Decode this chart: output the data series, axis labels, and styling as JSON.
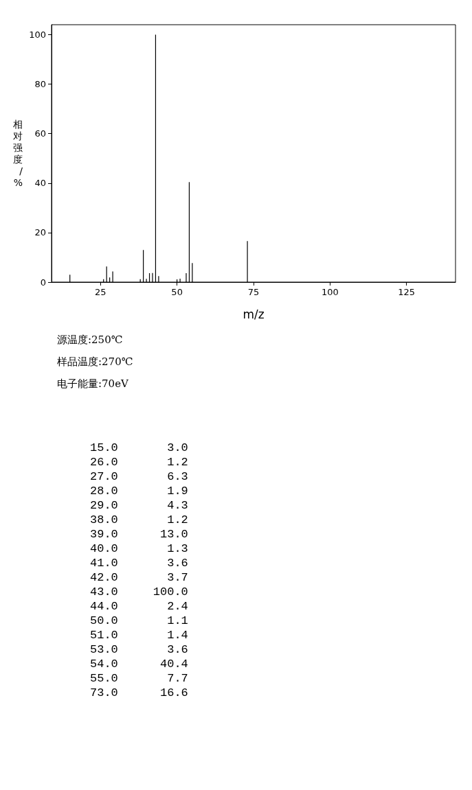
{
  "chart_data": [
    {
      "type": "bar",
      "xlabel": "m/z",
      "ylabel": "相对强度/%",
      "x": [
        15,
        26,
        27,
        28,
        29,
        38,
        39,
        40,
        41,
        42,
        43,
        44,
        50,
        51,
        53,
        54,
        55,
        73
      ],
      "values": [
        3.0,
        1.2,
        6.3,
        1.9,
        4.3,
        1.2,
        13.0,
        1.3,
        3.6,
        3.7,
        100.0,
        2.4,
        1.1,
        1.4,
        3.6,
        40.4,
        7.7,
        16.6
      ],
      "color": "#000000",
      "xlim": [
        9,
        141
      ],
      "xticks": [
        25,
        50,
        75,
        100,
        125
      ],
      "ylim": [
        0,
        104
      ],
      "yticks": [
        0,
        20,
        40,
        60,
        80,
        100
      ],
      "grid": false,
      "annotations": [
        "源温度:250℃",
        "样品温度:270℃",
        "电子能量:70eV"
      ]
    },
    {
      "type": "other",
      "annotations": [
        "15.0       3.0",
        "26.0       1.2",
        "27.0       6.3",
        "28.0       1.9",
        "29.0       4.3",
        "38.0       1.2",
        "39.0      13.0",
        "40.0       1.3",
        "41.0       3.6",
        "42.0       3.7",
        "43.0     100.0",
        "44.0       2.4",
        "50.0       1.1",
        "51.0       1.4",
        "53.0       3.6",
        "54.0      40.4",
        "55.0       7.7",
        "73.0      16.6"
      ]
    }
  ]
}
